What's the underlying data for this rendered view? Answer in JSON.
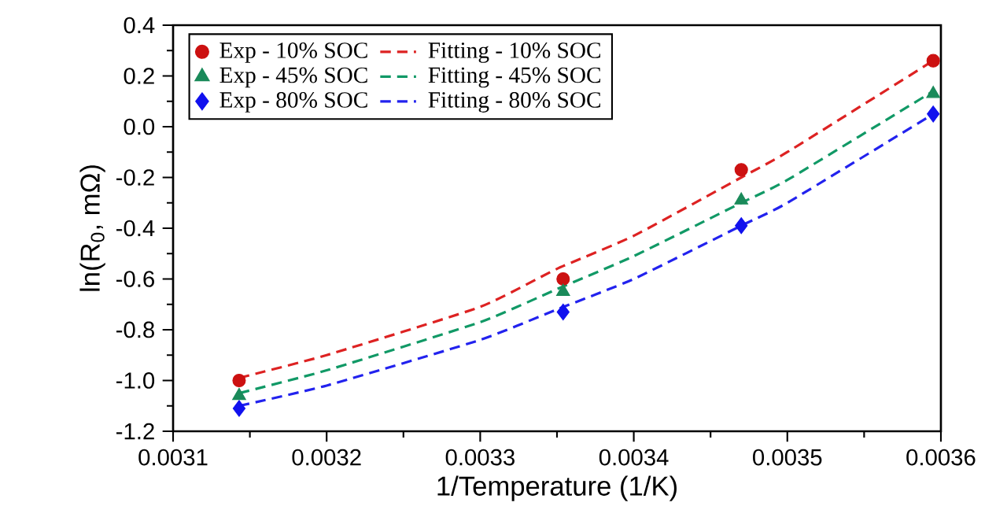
{
  "chart_data": {
    "type": "scatter",
    "xlabel": "1/Temperature (1/K)",
    "ylabel": "ln(R$_{0}$, mΩ)",
    "xlim": [
      0.0031,
      0.0036
    ],
    "xticks": [
      0.0031,
      0.0032,
      0.0033,
      0.0034,
      0.0035,
      0.0036
    ],
    "ylim": [
      -1.2,
      0.4
    ],
    "yticks": [
      {
        "value": -1.2,
        "label": "-1.2"
      },
      {
        "value": -1.0,
        "label": "-1.0"
      },
      {
        "value": -0.8,
        "label": "-0.8"
      },
      {
        "value": -0.6,
        "label": "-0.6"
      },
      {
        "value": -0.4,
        "label": "-0.4"
      },
      {
        "value": -0.2,
        "label": "-0.2"
      },
      {
        "value": 0,
        "label": "0.0"
      },
      {
        "value": 0.2,
        "label": "0.2"
      },
      {
        "value": 0.4,
        "label": "0.4"
      }
    ],
    "legend": "top left",
    "grid": false,
    "series": [
      {
        "name": "Exp - 10% SOC",
        "marker": "circle",
        "color": "#cc1111",
        "x": [
          0.003143,
          0.003354,
          0.00347,
          0.003595
        ],
        "values": [
          -1.0,
          -0.6,
          -0.17,
          0.26
        ]
      },
      {
        "name": "Fitting - 10% SOC",
        "type": "line",
        "line_style": "dashed",
        "marker": "none",
        "color": "#dd2222",
        "x": [
          0.003143,
          0.0032,
          0.0033,
          0.00335,
          0.0034,
          0.00347,
          0.0035,
          0.003595
        ],
        "values": [
          -0.99,
          -0.9,
          -0.71,
          -0.56,
          -0.43,
          -0.2,
          -0.1,
          0.26
        ]
      },
      {
        "name": "Exp - 45% SOC",
        "marker": "triangle",
        "color": "#1a8a5a",
        "x": [
          0.003143,
          0.003354,
          0.00347,
          0.003595
        ],
        "values": [
          -1.06,
          -0.65,
          -0.29,
          0.13
        ]
      },
      {
        "name": "Fitting - 45% SOC",
        "type": "line",
        "line_style": "dashed",
        "marker": "none",
        "color": "#119966",
        "x": [
          0.003143,
          0.0032,
          0.0033,
          0.00335,
          0.0034,
          0.00347,
          0.0035,
          0.003595
        ],
        "values": [
          -1.05,
          -0.96,
          -0.77,
          -0.64,
          -0.51,
          -0.3,
          -0.21,
          0.14
        ]
      },
      {
        "name": "Exp - 80% SOC",
        "marker": "diamond",
        "color": "#1111ee",
        "x": [
          0.003143,
          0.003354,
          0.00347,
          0.003595
        ],
        "values": [
          -1.11,
          -0.73,
          -0.39,
          0.05
        ]
      },
      {
        "name": "Fitting - 80% SOC",
        "type": "line",
        "line_style": "dashed",
        "marker": "none",
        "color": "#2222ee",
        "x": [
          0.003143,
          0.0032,
          0.0033,
          0.00335,
          0.0034,
          0.00347,
          0.0035,
          0.003595
        ],
        "values": [
          -1.1,
          -1.02,
          -0.84,
          -0.72,
          -0.6,
          -0.39,
          -0.3,
          0.05
        ]
      }
    ]
  }
}
